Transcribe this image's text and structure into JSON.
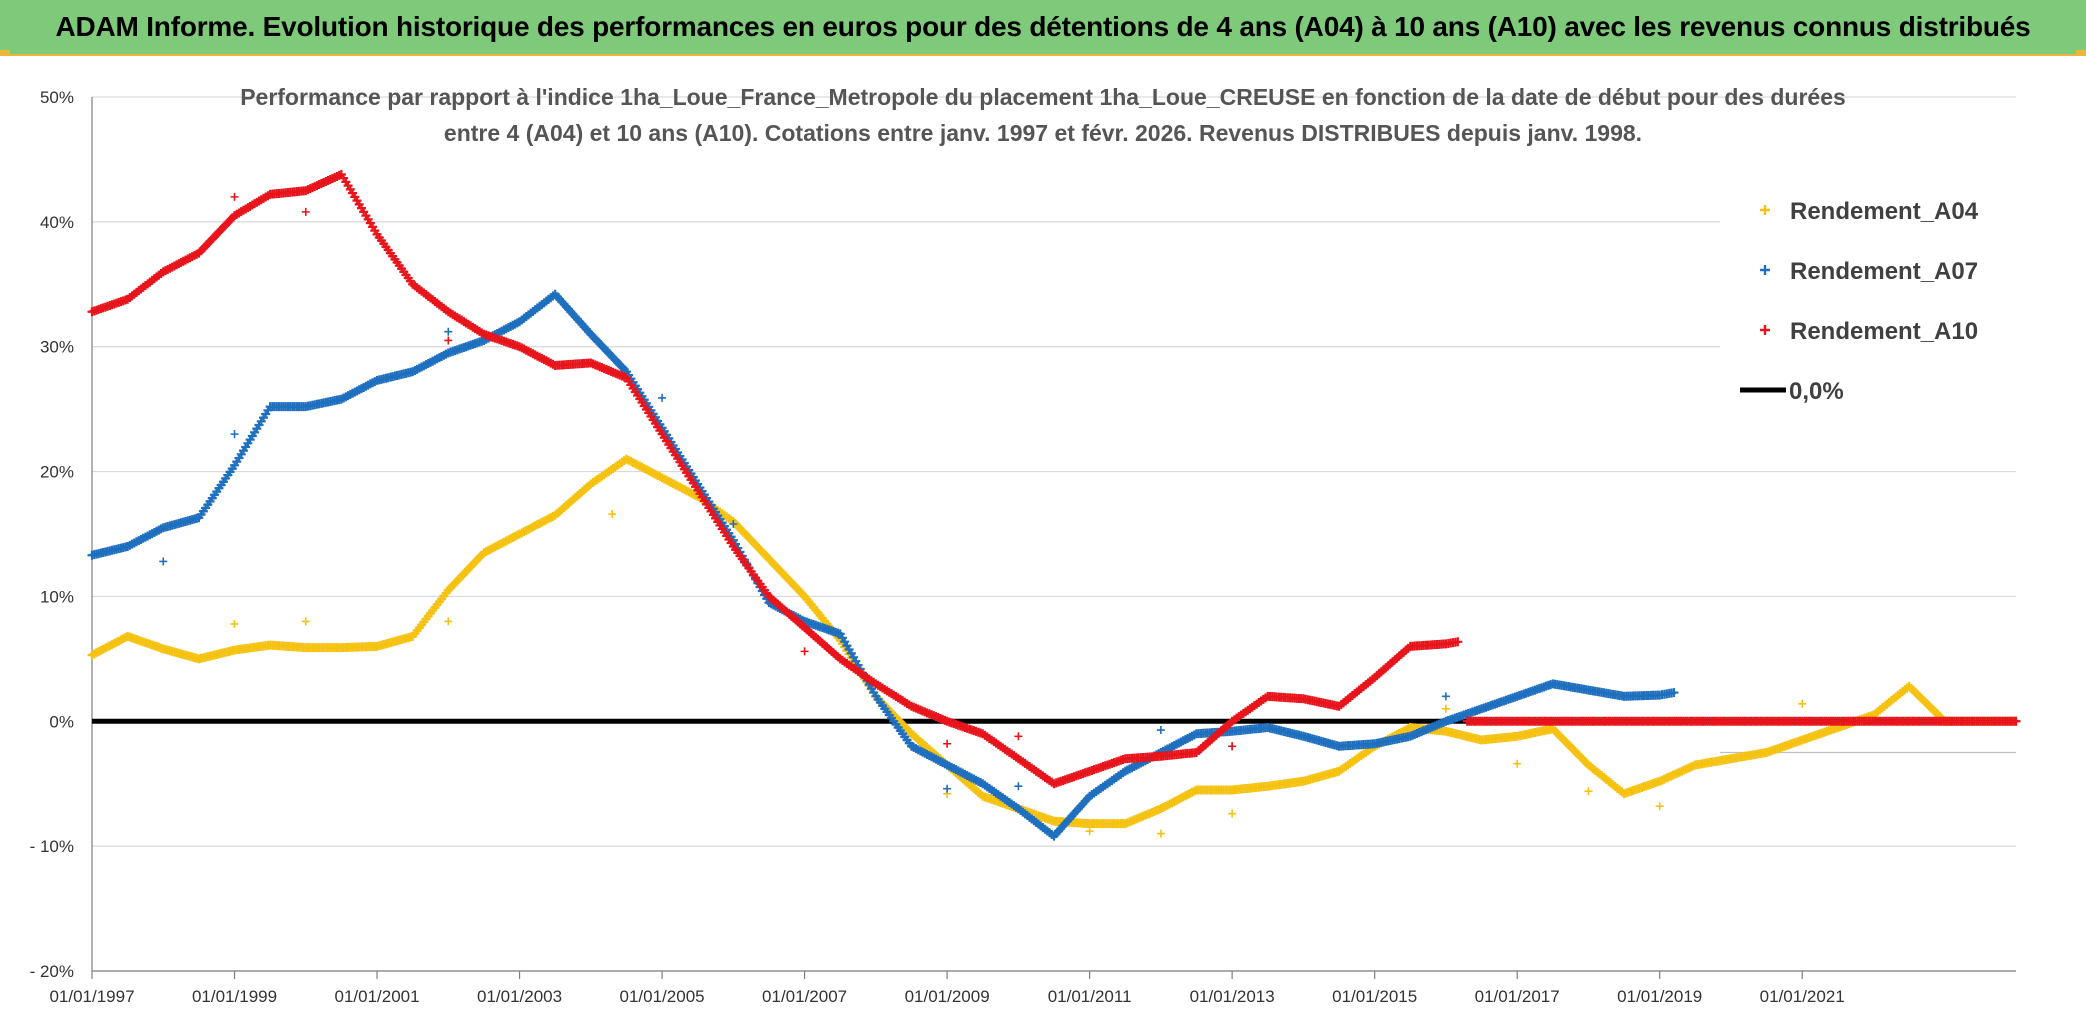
{
  "banner": {
    "title": "ADAM Informe. Evolution historique des performances en euros pour des détentions de 4 ans (A04) à 10 ans (A10) avec les revenus connus distribués"
  },
  "colors": {
    "banner_bg": "#7ec97a",
    "gold": "#e9b83a",
    "a04": "#f5c211",
    "a07": "#1f6fbf",
    "a10": "#e8141c",
    "zero": "#000000",
    "grid": "#d9d9d9"
  },
  "chart_data": {
    "type": "scatter",
    "title_lines": [
      "Performance par rapport à l'indice 1ha_Loue_France_Metropole  du placement 1ha_Loue_CREUSE en fonction de la date de début pour des durées",
      "entre 4 (A04) et 10 ans (A10). Cotations entre janv. 1997 et févr. 2026. Revenus DISTRIBUES depuis janv. 1998."
    ],
    "xlabel": "",
    "ylabel": "",
    "x_unit": "year",
    "xlim": [
      1997.0,
      2024.0
    ],
    "ylim": [
      -20,
      50
    ],
    "x_ticks": [
      {
        "value": 1997,
        "label": "01/01/1997"
      },
      {
        "value": 1999,
        "label": "01/01/1999"
      },
      {
        "value": 2001,
        "label": "01/01/2001"
      },
      {
        "value": 2003,
        "label": "01/01/2003"
      },
      {
        "value": 2005,
        "label": "01/01/2005"
      },
      {
        "value": 2007,
        "label": "01/01/2007"
      },
      {
        "value": 2009,
        "label": "01/01/2009"
      },
      {
        "value": 2011,
        "label": "01/01/2011"
      },
      {
        "value": 2013,
        "label": "01/01/2013"
      },
      {
        "value": 2015,
        "label": "01/01/2015"
      },
      {
        "value": 2017,
        "label": "01/01/2017"
      },
      {
        "value": 2019,
        "label": "01/01/2019"
      },
      {
        "value": 2021,
        "label": "01/01/2021"
      }
    ],
    "y_ticks": [
      {
        "value": 50,
        "label": "50%"
      },
      {
        "value": 40,
        "label": "40%"
      },
      {
        "value": 30,
        "label": "30%"
      },
      {
        "value": 20,
        "label": "20%"
      },
      {
        "value": 10,
        "label": "10%"
      },
      {
        "value": 0,
        "label": "0%"
      },
      {
        "value": -10,
        "label": "- 10%"
      },
      {
        "value": -20,
        "label": "- 20%"
      }
    ],
    "grid": true,
    "legend_position": "top-right",
    "legend": [
      {
        "key": "a04",
        "label": "Rendement_A04",
        "marker": "+"
      },
      {
        "key": "a07",
        "label": "Rendement_A07",
        "marker": "+"
      },
      {
        "key": "a10",
        "label": "Rendement_A10",
        "marker": "+"
      },
      {
        "key": "zero",
        "label": "0,0%",
        "marker": "line"
      }
    ],
    "series": [
      {
        "key": "a04",
        "name": "Rendement_A04",
        "points": [
          [
            1997.0,
            5.3
          ],
          [
            1997.5,
            6.8
          ],
          [
            1998.0,
            5.8
          ],
          [
            1998.5,
            5.0
          ],
          [
            1999.0,
            5.7
          ],
          [
            1999.5,
            6.1
          ],
          [
            2000.0,
            5.9
          ],
          [
            2000.5,
            5.9
          ],
          [
            2001.0,
            6.0
          ],
          [
            2001.5,
            6.8
          ],
          [
            2002.0,
            10.5
          ],
          [
            2002.5,
            13.5
          ],
          [
            2003.0,
            15.0
          ],
          [
            2003.5,
            16.5
          ],
          [
            2004.0,
            19.0
          ],
          [
            2004.5,
            21.0
          ],
          [
            2005.0,
            19.5
          ],
          [
            2005.5,
            18.0
          ],
          [
            2006.0,
            16.0
          ],
          [
            2006.5,
            13.0
          ],
          [
            2007.0,
            10.0
          ],
          [
            2007.5,
            6.5
          ],
          [
            2008.0,
            2.0
          ],
          [
            2008.5,
            -1.0
          ],
          [
            2009.0,
            -3.5
          ],
          [
            2009.5,
            -6.0
          ],
          [
            2010.0,
            -7.0
          ],
          [
            2010.5,
            -8.0
          ],
          [
            2011.0,
            -8.2
          ],
          [
            2011.5,
            -8.2
          ],
          [
            2012.0,
            -7.0
          ],
          [
            2012.5,
            -5.5
          ],
          [
            2013.0,
            -5.5
          ],
          [
            2013.5,
            -5.2
          ],
          [
            2014.0,
            -4.8
          ],
          [
            2014.5,
            -4.0
          ],
          [
            2015.0,
            -2.0
          ],
          [
            2015.5,
            -0.5
          ],
          [
            2016.0,
            -0.8
          ],
          [
            2016.5,
            -1.5
          ],
          [
            2017.0,
            -1.2
          ],
          [
            2017.5,
            -0.6
          ],
          [
            2018.0,
            -3.5
          ],
          [
            2018.5,
            -5.8
          ],
          [
            2019.0,
            -4.8
          ],
          [
            2019.5,
            -3.5
          ],
          [
            2020.0,
            -3.0
          ],
          [
            2020.5,
            -2.5
          ],
          [
            2021.0,
            -1.5
          ],
          [
            2021.5,
            -0.5
          ],
          [
            2022.0,
            0.5
          ],
          [
            2022.5,
            2.8
          ],
          [
            2023.0,
            0.0
          ],
          [
            2024.0,
            0.0
          ]
        ]
      },
      {
        "key": "a07",
        "name": "Rendement_A07",
        "points": [
          [
            1997.0,
            13.3
          ],
          [
            1997.5,
            14.0
          ],
          [
            1998.0,
            15.5
          ],
          [
            1998.5,
            16.3
          ],
          [
            1999.0,
            20.5
          ],
          [
            1999.5,
            25.2
          ],
          [
            2000.0,
            25.2
          ],
          [
            2000.5,
            25.8
          ],
          [
            2001.0,
            27.3
          ],
          [
            2001.5,
            28.0
          ],
          [
            2002.0,
            29.5
          ],
          [
            2002.5,
            30.5
          ],
          [
            2003.0,
            32.0
          ],
          [
            2003.5,
            34.2
          ],
          [
            2004.0,
            31.0
          ],
          [
            2004.5,
            28.0
          ],
          [
            2005.0,
            23.5
          ],
          [
            2005.5,
            19.0
          ],
          [
            2006.0,
            14.5
          ],
          [
            2006.5,
            9.5
          ],
          [
            2007.0,
            8.0
          ],
          [
            2007.5,
            7.0
          ],
          [
            2008.0,
            2.0
          ],
          [
            2008.5,
            -2.0
          ],
          [
            2009.0,
            -3.5
          ],
          [
            2009.5,
            -5.0
          ],
          [
            2010.0,
            -7.0
          ],
          [
            2010.5,
            -9.2
          ],
          [
            2011.0,
            -6.0
          ],
          [
            2011.5,
            -4.0
          ],
          [
            2012.0,
            -2.5
          ],
          [
            2012.5,
            -1.0
          ],
          [
            2013.0,
            -0.8
          ],
          [
            2013.5,
            -0.5
          ],
          [
            2014.0,
            -1.2
          ],
          [
            2014.5,
            -2.0
          ],
          [
            2015.0,
            -1.8
          ],
          [
            2015.5,
            -1.2
          ],
          [
            2016.0,
            0.0
          ],
          [
            2016.5,
            1.0
          ],
          [
            2017.0,
            2.0
          ],
          [
            2017.5,
            3.0
          ],
          [
            2018.0,
            2.5
          ],
          [
            2018.5,
            2.0
          ],
          [
            2019.0,
            2.1
          ],
          [
            2019.2,
            2.3
          ]
        ]
      },
      {
        "key": "a10",
        "name": "Rendement_A10",
        "points": [
          [
            1997.0,
            32.8
          ],
          [
            1997.5,
            33.8
          ],
          [
            1998.0,
            36.0
          ],
          [
            1998.5,
            37.5
          ],
          [
            1999.0,
            40.5
          ],
          [
            1999.5,
            42.2
          ],
          [
            2000.0,
            42.5
          ],
          [
            2000.5,
            43.8
          ],
          [
            2001.0,
            39.0
          ],
          [
            2001.5,
            35.0
          ],
          [
            2002.0,
            32.8
          ],
          [
            2002.5,
            31.0
          ],
          [
            2003.0,
            30.0
          ],
          [
            2003.5,
            28.5
          ],
          [
            2004.0,
            28.7
          ],
          [
            2004.5,
            27.5
          ],
          [
            2005.0,
            23.0
          ],
          [
            2005.5,
            18.5
          ],
          [
            2006.0,
            14.0
          ],
          [
            2006.5,
            10.0
          ],
          [
            2007.0,
            7.5
          ],
          [
            2007.5,
            5.0
          ],
          [
            2008.0,
            3.0
          ],
          [
            2008.5,
            1.2
          ],
          [
            2009.0,
            0.0
          ],
          [
            2009.5,
            -1.0
          ],
          [
            2010.0,
            -3.0
          ],
          [
            2010.5,
            -5.0
          ],
          [
            2011.0,
            -4.0
          ],
          [
            2011.5,
            -3.0
          ],
          [
            2012.0,
            -2.8
          ],
          [
            2012.5,
            -2.5
          ],
          [
            2013.0,
            0.0
          ],
          [
            2013.5,
            2.0
          ],
          [
            2014.0,
            1.8
          ],
          [
            2014.5,
            1.2
          ],
          [
            2015.0,
            3.5
          ],
          [
            2015.5,
            6.0
          ],
          [
            2016.0,
            6.2
          ],
          [
            2016.2,
            6.4
          ],
          [
            2016.3,
            0.0
          ],
          [
            2024.0,
            0.0
          ]
        ]
      }
    ],
    "outliers": [
      {
        "key": "a04",
        "points": [
          [
            1999.0,
            7.8
          ],
          [
            2000.0,
            8.0
          ],
          [
            2002.0,
            8.0
          ],
          [
            2004.3,
            16.6
          ],
          [
            2009.0,
            -5.8
          ],
          [
            2011.0,
            -8.8
          ],
          [
            2012.0,
            -9.0
          ],
          [
            2013.0,
            -7.4
          ],
          [
            2016.0,
            1.0
          ],
          [
            2017.0,
            -3.4
          ],
          [
            2018.0,
            -5.6
          ],
          [
            2019.0,
            -6.8
          ],
          [
            2021.0,
            1.4
          ]
        ]
      },
      {
        "key": "a07",
        "points": [
          [
            1998.0,
            12.8
          ],
          [
            1999.0,
            23.0
          ],
          [
            2002.0,
            31.2
          ],
          [
            2005.0,
            25.9
          ],
          [
            2006.0,
            15.8
          ],
          [
            2009.0,
            -5.4
          ],
          [
            2010.0,
            -5.2
          ],
          [
            2012.0,
            -0.7
          ],
          [
            2013.0,
            -2.0
          ],
          [
            2016.0,
            2.0
          ]
        ]
      },
      {
        "key": "a10",
        "points": [
          [
            1999.0,
            42.0
          ],
          [
            2000.0,
            40.8
          ],
          [
            2002.0,
            30.5
          ],
          [
            2009.0,
            -1.8
          ],
          [
            2010.0,
            -1.2
          ],
          [
            2013.0,
            -2.0
          ],
          [
            2007.0,
            5.6
          ]
        ]
      }
    ]
  }
}
